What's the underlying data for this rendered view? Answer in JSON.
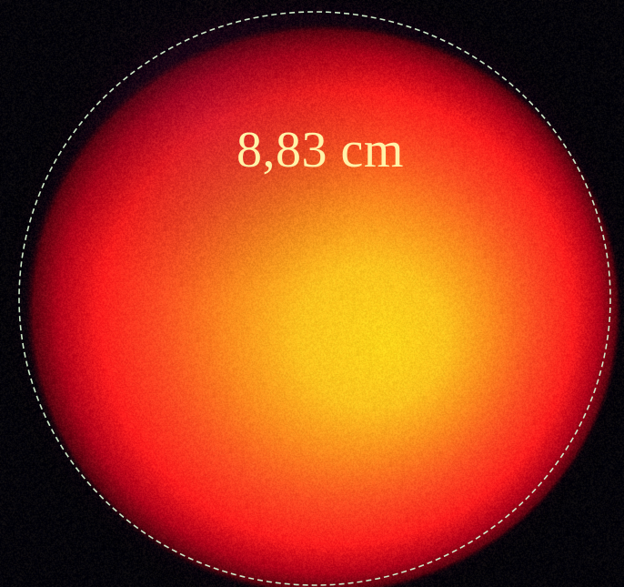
{
  "measurement": {
    "label": "8,83 cm"
  },
  "colors": {
    "background": "#02020a",
    "hot_core": "#ffd21a",
    "warm_mid": "#ff8a1e",
    "outer_red": "#ff1e1e",
    "edge_dark": "#5a0010",
    "outline": "#cfe8c8",
    "label_text": "#fff2a8"
  }
}
